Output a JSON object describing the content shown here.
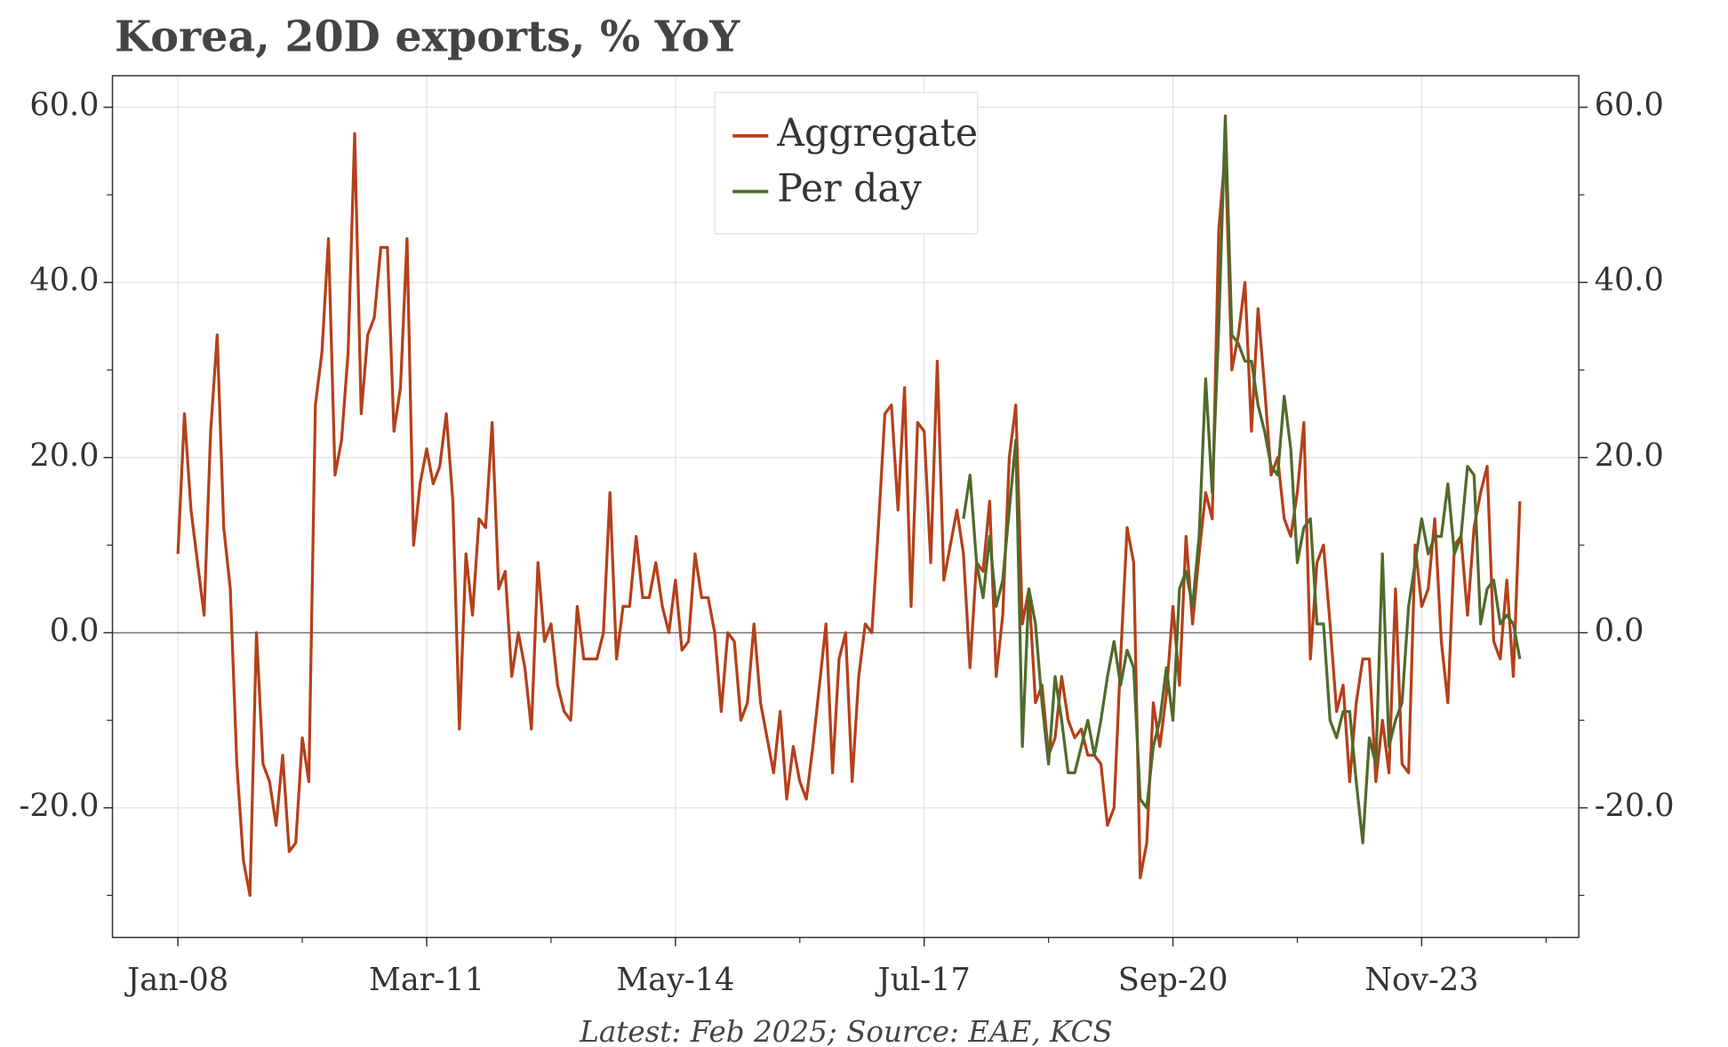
{
  "chart_data": {
    "type": "line",
    "title": "Korea, 20D exports, % YoY",
    "footnote": "Latest: Feb 2025; Source: EAE, KCS",
    "x": [
      "2008-01",
      "2008-02",
      "2008-03",
      "2008-04",
      "2008-05",
      "2008-06",
      "2008-07",
      "2008-08",
      "2008-09",
      "2008-10",
      "2008-11",
      "2008-12",
      "2009-01",
      "2009-02",
      "2009-03",
      "2009-04",
      "2009-05",
      "2009-06",
      "2009-07",
      "2009-08",
      "2009-09",
      "2009-10",
      "2009-11",
      "2009-12",
      "2010-01",
      "2010-02",
      "2010-03",
      "2010-04",
      "2010-05",
      "2010-06",
      "2010-07",
      "2010-08",
      "2010-09",
      "2010-10",
      "2010-11",
      "2010-12",
      "2011-01",
      "2011-02",
      "2011-03",
      "2011-04",
      "2011-05",
      "2011-06",
      "2011-07",
      "2011-08",
      "2011-09",
      "2011-10",
      "2011-11",
      "2011-12",
      "2012-01",
      "2012-02",
      "2012-03",
      "2012-04",
      "2012-05",
      "2012-06",
      "2012-07",
      "2012-08",
      "2012-09",
      "2012-10",
      "2012-11",
      "2012-12",
      "2013-01",
      "2013-02",
      "2013-03",
      "2013-04",
      "2013-05",
      "2013-06",
      "2013-07",
      "2013-08",
      "2013-09",
      "2013-10",
      "2013-11",
      "2013-12",
      "2014-01",
      "2014-02",
      "2014-03",
      "2014-04",
      "2014-05",
      "2014-06",
      "2014-07",
      "2014-08",
      "2014-09",
      "2014-10",
      "2014-11",
      "2014-12",
      "2015-01",
      "2015-02",
      "2015-03",
      "2015-04",
      "2015-05",
      "2015-06",
      "2015-07",
      "2015-08",
      "2015-09",
      "2015-10",
      "2015-11",
      "2015-12",
      "2016-01",
      "2016-02",
      "2016-03",
      "2016-04",
      "2016-05",
      "2016-06",
      "2016-07",
      "2016-08",
      "2016-09",
      "2016-10",
      "2016-11",
      "2016-12",
      "2017-01",
      "2017-02",
      "2017-03",
      "2017-04",
      "2017-05",
      "2017-06",
      "2017-07",
      "2017-08",
      "2017-09",
      "2017-10",
      "2017-11",
      "2017-12",
      "2018-01",
      "2018-02",
      "2018-03",
      "2018-04",
      "2018-05",
      "2018-06",
      "2018-07",
      "2018-08",
      "2018-09",
      "2018-10",
      "2018-11",
      "2018-12",
      "2019-01",
      "2019-02",
      "2019-03",
      "2019-04",
      "2019-05",
      "2019-06",
      "2019-07",
      "2019-08",
      "2019-09",
      "2019-10",
      "2019-11",
      "2019-12",
      "2020-01",
      "2020-02",
      "2020-03",
      "2020-04",
      "2020-05",
      "2020-06",
      "2020-07",
      "2020-08",
      "2020-09",
      "2020-10",
      "2020-11",
      "2020-12",
      "2021-01",
      "2021-02",
      "2021-03",
      "2021-04",
      "2021-05",
      "2021-06",
      "2021-07",
      "2021-08",
      "2021-09",
      "2021-10",
      "2021-11",
      "2021-12",
      "2022-01",
      "2022-02",
      "2022-03",
      "2022-04",
      "2022-05",
      "2022-06",
      "2022-07",
      "2022-08",
      "2022-09",
      "2022-10",
      "2022-11",
      "2022-12",
      "2023-01",
      "2023-02",
      "2023-03",
      "2023-04",
      "2023-05",
      "2023-06",
      "2023-07",
      "2023-08",
      "2023-09",
      "2023-10",
      "2023-11",
      "2023-12",
      "2024-01",
      "2024-02",
      "2024-03",
      "2024-04",
      "2024-05",
      "2024-06",
      "2024-07",
      "2024-08",
      "2024-09",
      "2024-10",
      "2024-11",
      "2024-12",
      "2025-01",
      "2025-02"
    ],
    "series": [
      {
        "name": "Aggregate",
        "color": "#b5401a",
        "values": [
          9,
          25,
          14,
          8,
          2,
          23,
          34,
          12,
          5,
          -15,
          -26,
          -30,
          0,
          -15,
          -17,
          -22,
          -14,
          -25,
          -24,
          -12,
          -17,
          26,
          32,
          45,
          18,
          22,
          32,
          57,
          25,
          34,
          36,
          44,
          44,
          23,
          28,
          45,
          10,
          17,
          21,
          17,
          19,
          25,
          15,
          -11,
          9,
          2,
          13,
          12,
          24,
          5,
          7,
          -5,
          0,
          -4,
          -11,
          8,
          -1,
          1,
          -6,
          -9,
          -10,
          3,
          -3,
          -3,
          -3,
          0,
          16,
          -3,
          3,
          3,
          11,
          4,
          4,
          8,
          3,
          0,
          6,
          -2,
          -1,
          9,
          4,
          4,
          0,
          -9,
          0,
          -1,
          -10,
          -8,
          1,
          -8,
          -12,
          -16,
          -9,
          -19,
          -13,
          -17,
          -19,
          -13,
          -6,
          1,
          -16,
          -3,
          0,
          -17,
          -5,
          1,
          0,
          12,
          25,
          26,
          14,
          28,
          3,
          24,
          23,
          8,
          31,
          6,
          10,
          14,
          9,
          -4,
          8,
          7,
          15,
          -5,
          2,
          20,
          26,
          1,
          5,
          -8,
          -6,
          -14,
          -12,
          -5,
          -10,
          -12,
          -11,
          -14,
          -14,
          -15,
          -22,
          -20,
          -3,
          12,
          8,
          -28,
          -24,
          -8,
          -13,
          -7,
          3,
          -6,
          11,
          1,
          9,
          16,
          13,
          46,
          55,
          30,
          34,
          40,
          23,
          37,
          28,
          18,
          20,
          13,
          11,
          16,
          24,
          -3,
          8,
          10,
          1,
          -9,
          -6,
          -17,
          -8,
          -3,
          -3,
          -17,
          -10,
          -16,
          5,
          -15,
          -16,
          10,
          3,
          5,
          13,
          -1,
          -8,
          10,
          11,
          2,
          12,
          16,
          19,
          -1,
          -3,
          6,
          -5,
          15
        ]
      },
      {
        "name": "Per day",
        "color": "#4f6b2a",
        "values": [
          null,
          null,
          null,
          null,
          null,
          null,
          null,
          null,
          null,
          null,
          null,
          null,
          null,
          null,
          null,
          null,
          null,
          null,
          null,
          null,
          null,
          null,
          null,
          null,
          null,
          null,
          null,
          null,
          null,
          null,
          null,
          null,
          null,
          null,
          null,
          null,
          null,
          null,
          null,
          null,
          null,
          null,
          null,
          null,
          null,
          null,
          null,
          null,
          null,
          null,
          null,
          null,
          null,
          null,
          null,
          null,
          null,
          null,
          null,
          null,
          null,
          null,
          null,
          null,
          null,
          null,
          null,
          null,
          null,
          null,
          null,
          null,
          null,
          null,
          null,
          null,
          null,
          null,
          null,
          null,
          null,
          null,
          null,
          null,
          null,
          null,
          null,
          null,
          null,
          null,
          null,
          null,
          null,
          null,
          null,
          null,
          null,
          null,
          null,
          null,
          null,
          null,
          null,
          null,
          null,
          null,
          null,
          null,
          null,
          null,
          null,
          null,
          null,
          null,
          null,
          null,
          null,
          null,
          null,
          null,
          13,
          18,
          8,
          4,
          11,
          3,
          6,
          14,
          22,
          -13,
          5,
          1,
          -8,
          -15,
          -5,
          -10,
          -16,
          -16,
          -13,
          -10,
          -14,
          -10,
          -5,
          -1,
          -6,
          -2,
          -4,
          -19,
          -20,
          -13,
          -10,
          -4,
          -10,
          5,
          7,
          3,
          11,
          29,
          16,
          35,
          59,
          34,
          33,
          31,
          31,
          26,
          23,
          19,
          18,
          27,
          21,
          8,
          12,
          13,
          1,
          1,
          -10,
          -12,
          -9,
          -9,
          -17,
          -24,
          -12,
          -15,
          9,
          -13,
          -10,
          -8,
          3,
          8,
          13,
          9,
          11,
          11,
          17,
          9,
          11,
          19,
          18,
          1,
          5,
          6,
          1,
          2,
          1,
          -3
        ]
      }
    ],
    "xlim": [
      "2007-03",
      "2025-11"
    ],
    "xticks": [
      {
        "value": "2008-01",
        "label": "Jan-08"
      },
      {
        "value": "2011-03",
        "label": "Mar-11"
      },
      {
        "value": "2014-05",
        "label": "May-14"
      },
      {
        "value": "2017-07",
        "label": "Jul-17"
      },
      {
        "value": "2020-09",
        "label": "Sep-20"
      },
      {
        "value": "2023-11",
        "label": "Nov-23"
      }
    ],
    "xminorticks": [
      "2009-08",
      "2012-10",
      "2015-12",
      "2019-02",
      "2022-04",
      "2025-06"
    ],
    "ylim": [
      -34.8,
      63.6
    ],
    "yticks": [
      {
        "value": -20,
        "label": "-20.0"
      },
      {
        "value": 0,
        "label": "0.0"
      },
      {
        "value": 20,
        "label": "20.0"
      },
      {
        "value": 40,
        "label": "40.0"
      },
      {
        "value": 60,
        "label": "60.0"
      }
    ],
    "yminorticks": [
      -30,
      -10,
      10,
      30,
      50
    ],
    "y2lim": [
      -34.8,
      63.6
    ],
    "y2ticks": [
      {
        "value": -20,
        "label": "-20.0"
      },
      {
        "value": 0,
        "label": "0.0"
      },
      {
        "value": 20,
        "label": "20.0"
      },
      {
        "value": 40,
        "label": "40.0"
      },
      {
        "value": 60,
        "label": "60.0"
      }
    ],
    "grid": true,
    "legend": "upper center"
  }
}
